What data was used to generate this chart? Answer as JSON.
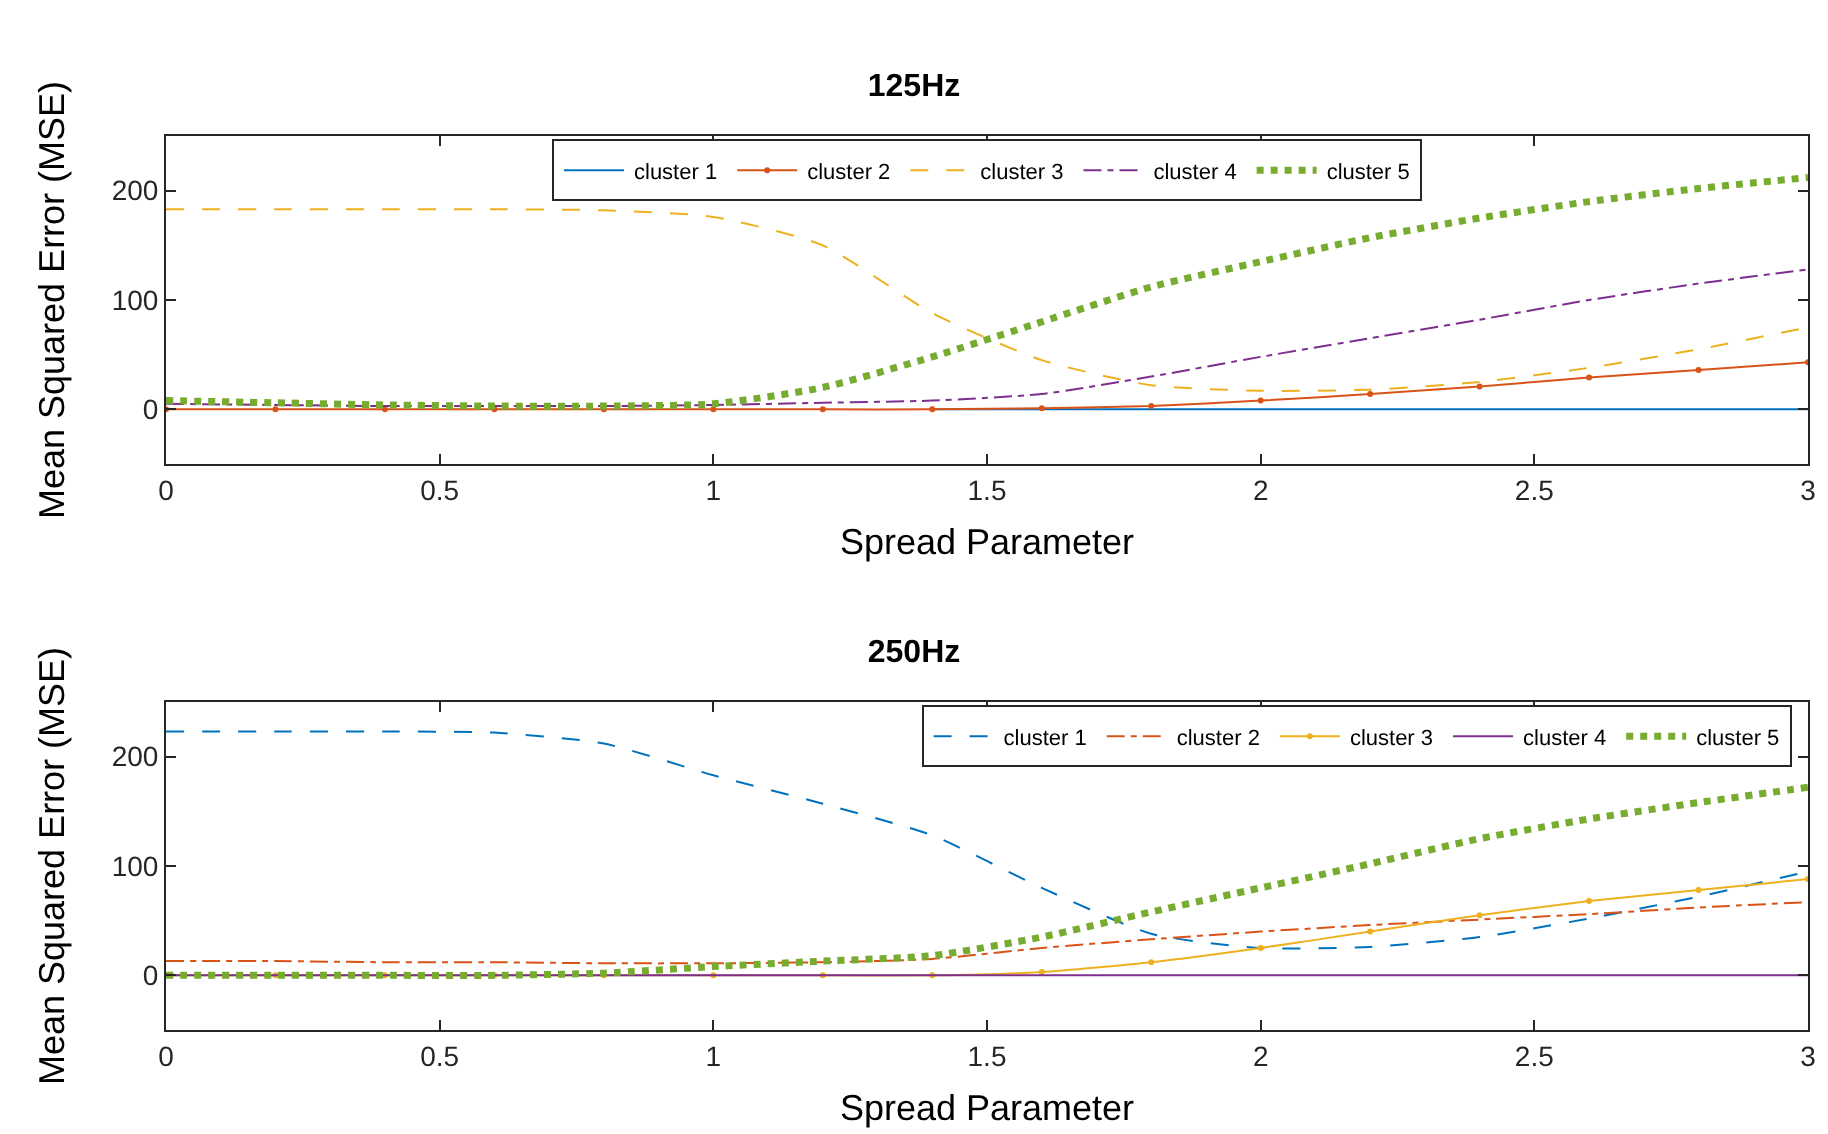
{
  "chart_data": [
    {
      "type": "line",
      "title": "125Hz",
      "xlabel": "Spread Parameter",
      "ylabel": "Mean Squared Error (MSE)",
      "x": [
        0,
        0.2,
        0.4,
        0.6,
        0.8,
        1.0,
        1.2,
        1.4,
        1.6,
        1.8,
        2.0,
        2.2,
        2.4,
        2.6,
        2.8,
        3.0
      ],
      "xlim": [
        0,
        3
      ],
      "xticks": [
        0,
        0.5,
        1,
        1.5,
        2,
        2.5,
        3
      ],
      "ylim": [
        -50,
        250
      ],
      "yticks": [
        0,
        100,
        200
      ],
      "grid": false,
      "legend": "top",
      "series": [
        {
          "name": "cluster 1",
          "color": "#0072bd",
          "line_style": "solid",
          "marker": "none",
          "values": [
            null,
            null,
            null,
            null,
            null,
            null,
            null,
            0,
            0,
            0,
            0,
            0,
            0,
            0,
            0,
            0
          ]
        },
        {
          "name": "cluster 2",
          "color": "#d95319",
          "line_style": "solid",
          "marker": "circle",
          "values": [
            0,
            0,
            0,
            0,
            0,
            0,
            0,
            0,
            1,
            3,
            8,
            14,
            21,
            29,
            36,
            43
          ]
        },
        {
          "name": "cluster 3",
          "color": "#edb120",
          "line_style": "dashed",
          "marker": "none",
          "values": [
            183,
            183,
            183,
            183,
            182,
            176,
            150,
            88,
            45,
            22,
            17,
            18,
            25,
            38,
            55,
            75
          ]
        },
        {
          "name": "cluster 4",
          "color": "#7e2f8e",
          "line_style": "dashdot",
          "marker": "none",
          "values": [
            5,
            4,
            3,
            3,
            3,
            4,
            6,
            8,
            14,
            30,
            48,
            65,
            82,
            100,
            115,
            128
          ]
        },
        {
          "name": "cluster 5",
          "color": "#77ac30",
          "line_style": "dotted",
          "marker": "none",
          "values": [
            8,
            6,
            4,
            3,
            3,
            5,
            20,
            48,
            80,
            112,
            135,
            157,
            175,
            190,
            202,
            212
          ]
        }
      ]
    },
    {
      "type": "line",
      "title": "250Hz",
      "xlabel": "Spread Parameter",
      "ylabel": "Mean Squared Error (MSE)",
      "x": [
        0,
        0.2,
        0.4,
        0.6,
        0.8,
        1.0,
        1.2,
        1.4,
        1.6,
        1.8,
        2.0,
        2.2,
        2.4,
        2.6,
        2.8,
        3.0
      ],
      "xlim": [
        0,
        3
      ],
      "xticks": [
        0,
        0.5,
        1,
        1.5,
        2,
        2.5,
        3
      ],
      "ylim": [
        -50,
        250
      ],
      "yticks": [
        0,
        100,
        200
      ],
      "grid": false,
      "legend": "top right",
      "series": [
        {
          "name": "cluster 1",
          "color": "#0072bd",
          "line_style": "dashed",
          "marker": "none",
          "values": [
            223,
            223,
            223,
            222,
            212,
            183,
            157,
            128,
            80,
            38,
            25,
            26,
            35,
            52,
            72,
            95
          ]
        },
        {
          "name": "cluster 2",
          "color": "#d95319",
          "line_style": "dashdot",
          "marker": "none",
          "values": [
            13,
            13,
            12,
            12,
            11,
            11,
            12,
            15,
            25,
            33,
            40,
            46,
            51,
            56,
            62,
            67
          ]
        },
        {
          "name": "cluster 3",
          "color": "#edb120",
          "line_style": "solid",
          "marker": "circle",
          "values": [
            0,
            0,
            0,
            0,
            0,
            0,
            0,
            0,
            3,
            12,
            25,
            40,
            55,
            68,
            78,
            88
          ]
        },
        {
          "name": "cluster 4",
          "color": "#7e2f8e",
          "line_style": "solid",
          "marker": "none",
          "values": [
            0,
            0,
            0,
            0,
            0,
            0,
            0,
            0,
            0,
            0,
            0,
            0,
            0,
            0,
            0,
            0
          ]
        },
        {
          "name": "cluster 5",
          "color": "#77ac30",
          "line_style": "dotted",
          "marker": "none",
          "values": [
            0,
            0,
            0,
            0,
            2,
            8,
            13,
            18,
            35,
            58,
            80,
            102,
            125,
            143,
            158,
            172
          ]
        }
      ]
    }
  ]
}
